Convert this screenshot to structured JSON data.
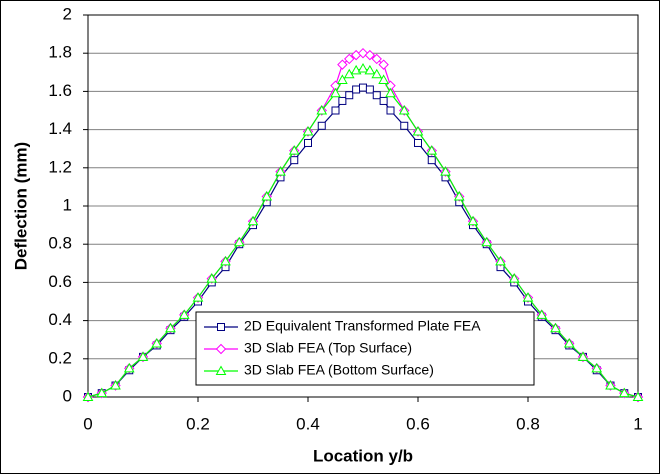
{
  "chart_data": {
    "type": "line",
    "x_label": "Location y/b",
    "y_label": "Deflection (mm)",
    "x": [
      0,
      0.025,
      0.05,
      0.075,
      0.1,
      0.125,
      0.15,
      0.175,
      0.2,
      0.225,
      0.25,
      0.275,
      0.3,
      0.325,
      0.35,
      0.375,
      0.4,
      0.425,
      0.45,
      0.4625,
      0.475,
      0.4875,
      0.5,
      0.5125,
      0.525,
      0.5375,
      0.55,
      0.575,
      0.6,
      0.625,
      0.65,
      0.675,
      0.7,
      0.725,
      0.75,
      0.775,
      0.8,
      0.825,
      0.85,
      0.875,
      0.9,
      0.925,
      0.95,
      0.975,
      1
    ],
    "series": [
      {
        "name": "2D Equivalent Transformed Plate FEA",
        "color": "#000080",
        "marker": "square",
        "values": [
          0,
          0.02,
          0.06,
          0.14,
          0.21,
          0.27,
          0.35,
          0.42,
          0.5,
          0.6,
          0.68,
          0.8,
          0.9,
          1.02,
          1.15,
          1.24,
          1.33,
          1.42,
          1.5,
          1.55,
          1.58,
          1.61,
          1.62,
          1.61,
          1.58,
          1.55,
          1.5,
          1.42,
          1.33,
          1.24,
          1.15,
          1.02,
          0.9,
          0.8,
          0.68,
          0.6,
          0.5,
          0.42,
          0.35,
          0.27,
          0.21,
          0.14,
          0.06,
          0.02,
          0
        ]
      },
      {
        "name": "3D Slab FEA (Top Surface)",
        "color": "#ff00ff",
        "marker": "diamond",
        "values": [
          0,
          0.02,
          0.06,
          0.15,
          0.21,
          0.28,
          0.36,
          0.43,
          0.52,
          0.62,
          0.71,
          0.81,
          0.92,
          1.05,
          1.18,
          1.29,
          1.39,
          1.5,
          1.63,
          1.74,
          1.77,
          1.79,
          1.8,
          1.79,
          1.77,
          1.74,
          1.63,
          1.5,
          1.39,
          1.29,
          1.18,
          1.05,
          0.92,
          0.81,
          0.71,
          0.62,
          0.52,
          0.43,
          0.36,
          0.28,
          0.21,
          0.15,
          0.06,
          0.02,
          0
        ]
      },
      {
        "name": "3D Slab FEA (Bottom Surface)",
        "color": "#00ff00",
        "marker": "triangle",
        "values": [
          0,
          0.02,
          0.06,
          0.15,
          0.21,
          0.28,
          0.36,
          0.43,
          0.52,
          0.62,
          0.71,
          0.81,
          0.92,
          1.05,
          1.18,
          1.29,
          1.39,
          1.5,
          1.59,
          1.66,
          1.69,
          1.71,
          1.72,
          1.71,
          1.69,
          1.66,
          1.59,
          1.5,
          1.39,
          1.29,
          1.18,
          1.05,
          0.92,
          0.81,
          0.71,
          0.62,
          0.52,
          0.43,
          0.36,
          0.28,
          0.21,
          0.15,
          0.06,
          0.02,
          0
        ]
      }
    ],
    "xlim": [
      0,
      1
    ],
    "xticks": [
      0,
      0.2,
      0.4,
      0.6,
      0.8,
      1
    ],
    "ylim": [
      0,
      2
    ],
    "yticks": [
      0,
      0.2,
      0.4,
      0.6,
      0.8,
      1,
      1.2,
      1.4,
      1.6,
      1.8,
      2
    ],
    "grid": true,
    "legend": "lower center"
  }
}
